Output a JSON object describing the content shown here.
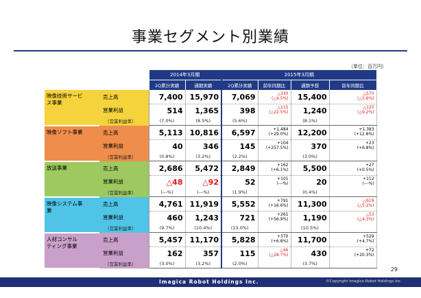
{
  "title": "事業セグメント別業績",
  "unit": "（単位：百万円）",
  "headers": {
    "period_2014": "2014年3月期",
    "period_2015": "2015年3月期",
    "cols": [
      "2Q累計実績",
      "通期実績",
      "2Q累計実績",
      "前年同期比",
      "通期予想",
      "前年同期比"
    ]
  },
  "segments": [
    {
      "name": "映像技術サービス事業",
      "name_lines": [
        "映像技術サービ",
        "ス事業"
      ],
      "color": "#f5d33c",
      "label_sales": "売上高",
      "label_op": "営業利益",
      "label_rate": "（営業利益率）",
      "sales": [
        "7,400",
        "15,970",
        "7,069",
        "15,400"
      ],
      "sales_cmp_2q": [
        "△330",
        "(△4.5%)"
      ],
      "sales_cmp_2q_neg": true,
      "sales_cmp_fy": [
        "△570",
        "(△3.6%)"
      ],
      "sales_cmp_fy_neg": true,
      "op": [
        "514",
        "1,365",
        "398",
        "1,240"
      ],
      "op_cmp_2q": [
        "△115",
        "(△22.5%)"
      ],
      "op_cmp_2q_neg": true,
      "op_cmp_fy": [
        "△125",
        "(△9.2%)"
      ],
      "op_cmp_fy_neg": true,
      "rate": [
        "(7.0%)",
        "(8.5%)",
        "(5.6%)",
        "(8.1%)"
      ]
    },
    {
      "name": "映像ソフト事業",
      "name_lines": [
        "映像ソフト事業"
      ],
      "color": "#ee8d4c",
      "label_sales": "売上高",
      "label_op": "営業利益",
      "label_rate": "（営業利益率）",
      "sales": [
        "5,113",
        "10,816",
        "6,597",
        "12,200"
      ],
      "sales_cmp_2q": [
        "+1,484",
        "(+29.0%)"
      ],
      "sales_cmp_2q_neg": false,
      "sales_cmp_fy": [
        "+1,383",
        "(+12.8%)"
      ],
      "sales_cmp_fy_neg": false,
      "op": [
        "40",
        "346",
        "145",
        "370"
      ],
      "op_cmp_2q": [
        "+104",
        "(+257.5%)"
      ],
      "op_cmp_2q_neg": false,
      "op_cmp_fy": [
        "+23",
        "(+6.8%)"
      ],
      "op_cmp_fy_neg": false,
      "rate": [
        "(0.8%)",
        "(3.2%)",
        "(2.2%)",
        "(3.0%)"
      ]
    },
    {
      "name": "放送事業",
      "name_lines": [
        "放送事業"
      ],
      "color": "#9dc960",
      "label_sales": "売上高",
      "label_op": "営業利益",
      "label_rate": "（営業利益率）",
      "sales": [
        "2,686",
        "5,472",
        "2,849",
        "5,500"
      ],
      "sales_cmp_2q": [
        "+162",
        "(+6.1%)"
      ],
      "sales_cmp_2q_neg": false,
      "sales_cmp_fy": [
        "+27",
        "(+0.5%)"
      ],
      "sales_cmp_fy_neg": false,
      "op": [
        "△48",
        "△92",
        "52",
        "20"
      ],
      "op_neg": [
        true,
        true,
        false,
        false
      ],
      "op_cmp_2q": [
        "+101",
        "(---%)"
      ],
      "op_cmp_2q_neg": false,
      "op_cmp_fy": [
        "+112",
        "(---%)"
      ],
      "op_cmp_fy_neg": false,
      "rate": [
        "(---%)",
        "(---%)",
        "(1.9%)",
        "(0.4%)"
      ]
    },
    {
      "name": "映像システム事業",
      "name_lines": [
        "映像システム事",
        "業"
      ],
      "color": "#4fc4e6",
      "label_sales": "売上高",
      "label_op": "営業利益",
      "label_rate": "（営業利益率）",
      "sales": [
        "4,761",
        "11,919",
        "5,552",
        "11,300"
      ],
      "sales_cmp_2q": [
        "+791",
        "(+16.6%)"
      ],
      "sales_cmp_2q_neg": false,
      "sales_cmp_fy": [
        "△619",
        "(△5.2%)"
      ],
      "sales_cmp_fy_neg": true,
      "op": [
        "460",
        "1,243",
        "721",
        "1,190"
      ],
      "op_cmp_2q": [
        "+261",
        "(+56.9%)"
      ],
      "op_cmp_2q_neg": false,
      "op_cmp_fy": [
        "△53",
        "(△4.3%)"
      ],
      "op_cmp_fy_neg": true,
      "rate": [
        "(9.7%)",
        "(10.4%)",
        "(13.0%)",
        "(10.5%)"
      ]
    },
    {
      "name": "人材コンサルティング事業",
      "name_lines": [
        "人材コンサル",
        "ティング事業"
      ],
      "color": "#c9a0c9",
      "label_sales": "売上高",
      "label_op": "営業利益",
      "label_rate": "（営業利益率）",
      "sales": [
        "5,457",
        "11,170",
        "5,828",
        "11,700"
      ],
      "sales_cmp_2q": [
        "+370",
        "(+6.8%)"
      ],
      "sales_cmp_2q_neg": false,
      "sales_cmp_fy": [
        "+529",
        "(+4.7%)"
      ],
      "sales_cmp_fy_neg": false,
      "op": [
        "162",
        "357",
        "115",
        "430"
      ],
      "op_cmp_2q": [
        "△46",
        "(△28.7%)"
      ],
      "op_cmp_2q_neg": true,
      "op_cmp_fy": [
        "+72",
        "(+20.3%)"
      ],
      "op_cmp_fy_neg": false,
      "rate": [
        "(3.0%)",
        "(3.2%)",
        "(2.0%)",
        "(3.7%)"
      ]
    }
  ],
  "page_number": "29",
  "footer": {
    "logo": "Imagica Robot Holdings Inc.",
    "copyright": "©Copyright Imagica Robot Holdings Inc."
  },
  "colors": {
    "header": "#203a85",
    "footer": "#1f2f73",
    "title_rule": "#1f3a84",
    "negative": "#e0161b"
  }
}
